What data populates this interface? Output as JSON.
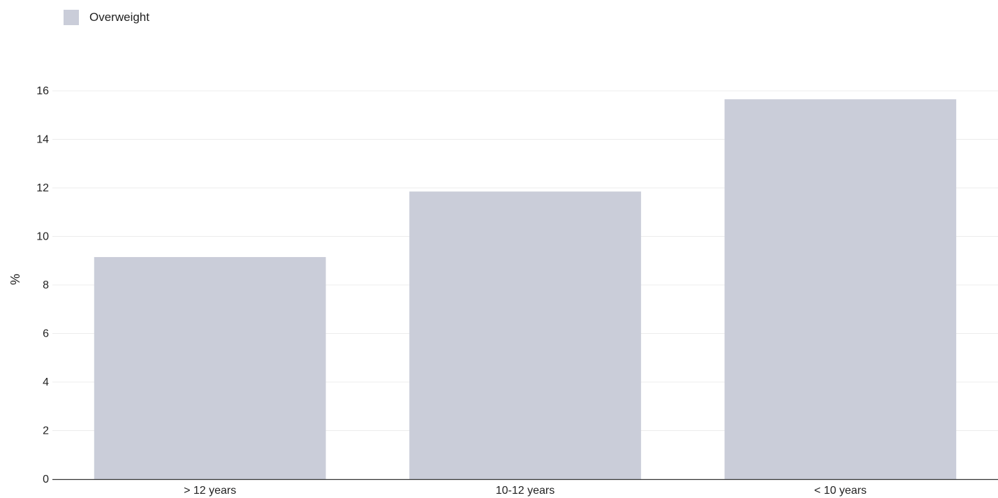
{
  "chart_data": {
    "type": "bar",
    "categories": [
      "> 12 years",
      "10-12 years",
      "< 10 years"
    ],
    "series": [
      {
        "name": "Overweight",
        "values": [
          9.15,
          11.85,
          15.65
        ],
        "color": "#cacdd9"
      }
    ],
    "ylabel": "%",
    "xlabel": "",
    "ylim": [
      0,
      16
    ],
    "yticks": [
      0,
      2,
      4,
      6,
      8,
      10,
      12,
      14,
      16
    ],
    "grid": true,
    "legend_position": "top-left"
  }
}
